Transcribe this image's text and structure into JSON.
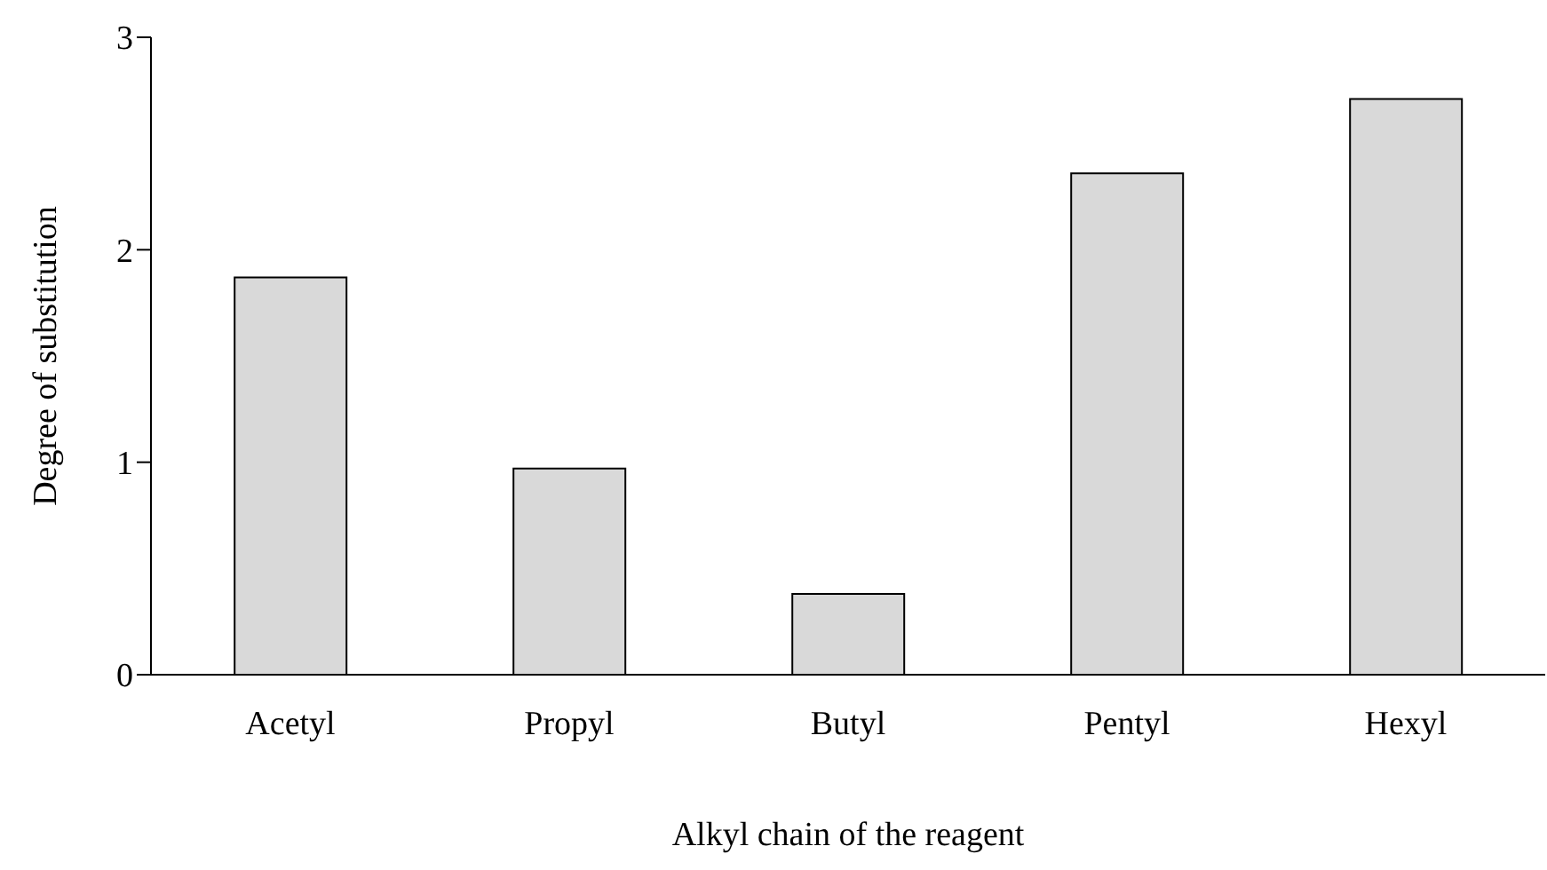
{
  "chart_data": {
    "type": "bar",
    "xlabel": "Alkyl chain of the reagent",
    "ylabel": "Degree of substitution",
    "categories": [
      "Acetyl",
      "Propyl",
      "Butyl",
      "Pentyl",
      "Hexyl"
    ],
    "values": [
      1.87,
      0.97,
      0.38,
      2.36,
      2.71
    ],
    "color": "#d9d9d9",
    "ylim": [
      0,
      3
    ],
    "yticks": [
      0,
      1,
      2,
      3
    ],
    "grid": false,
    "legend": false
  }
}
